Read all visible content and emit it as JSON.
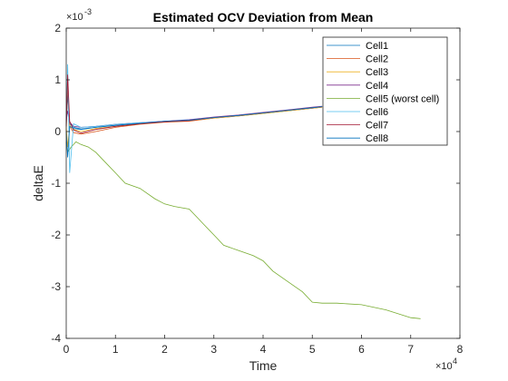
{
  "chart_data": {
    "type": "line",
    "title": "Estimated OCV Deviation from Mean",
    "xlabel": "Time",
    "ylabel": "deltaE",
    "x_multiplier_label": "×10",
    "x_multiplier_exp": "4",
    "y_multiplier_label": "×10",
    "y_multiplier_exp": "-3",
    "xlim": [
      0,
      80000
    ],
    "ylim": [
      -0.004,
      0.002
    ],
    "x_ticks": [
      0,
      10000,
      20000,
      30000,
      40000,
      50000,
      60000,
      70000,
      80000
    ],
    "x_tick_labels": [
      "0",
      "1",
      "2",
      "3",
      "4",
      "5",
      "6",
      "7",
      "8"
    ],
    "y_ticks": [
      -0.004,
      -0.003,
      -0.002,
      -0.001,
      0,
      0.001,
      0.002
    ],
    "y_tick_labels": [
      "-4",
      "-3",
      "-2",
      "-1",
      "0",
      "1",
      "2"
    ],
    "grid": false,
    "legend_position": "top-right",
    "series": [
      {
        "name": "Cell1",
        "color": "#0072BD",
        "x": [
          0,
          300,
          700,
          1500,
          3000,
          6000,
          10000,
          15000,
          20000,
          25000,
          30000,
          35000,
          40000,
          45000,
          50000,
          52000
        ],
        "y": [
          0.0001,
          0.0007,
          0.00015,
          8e-05,
          5e-05,
          8e-05,
          0.00012,
          0.00016,
          0.0002,
          0.00022,
          0.00027,
          0.00031,
          0.00036,
          0.00041,
          0.00046,
          0.00048
        ]
      },
      {
        "name": "Cell2",
        "color": "#D95319",
        "x": [
          0,
          300,
          700,
          1500,
          3000,
          6000,
          10000,
          15000,
          20000,
          25000,
          30000,
          35000,
          40000,
          45000,
          50000,
          52000
        ],
        "y": [
          0.0,
          0.0009,
          0.0001,
          -2e-05,
          -5e-05,
          0.0,
          8e-05,
          0.00014,
          0.00018,
          0.0002,
          0.00026,
          0.0003,
          0.00035,
          0.0004,
          0.00045,
          0.00047
        ]
      },
      {
        "name": "Cell3",
        "color": "#EDB120",
        "x": [
          0,
          300,
          700,
          1500,
          3000,
          6000,
          10000,
          15000,
          20000,
          25000,
          30000,
          35000,
          40000,
          45000,
          50000,
          52000
        ],
        "y": [
          0.0001,
          -0.0003,
          0.00012,
          4e-05,
          0.0,
          6e-05,
          0.0001,
          0.00015,
          0.00019,
          0.00021,
          0.00026,
          0.0003,
          0.00035,
          0.0004,
          0.00045,
          0.00047
        ]
      },
      {
        "name": "Cell4",
        "color": "#7E2F8E",
        "x": [
          0,
          300,
          700,
          1500,
          3000,
          6000,
          10000,
          15000,
          20000,
          25000,
          30000,
          35000,
          40000,
          45000,
          50000,
          52000
        ],
        "y": [
          0.0002,
          0.0004,
          0.00018,
          0.0001,
          8e-05,
          0.0001,
          0.00014,
          0.00017,
          0.0002,
          0.00023,
          0.00028,
          0.00032,
          0.00037,
          0.00042,
          0.00047,
          0.00049
        ]
      },
      {
        "name": "Cell5 (worst cell)",
        "color": "#77AC30",
        "x": [
          0,
          300,
          1000,
          2000,
          3000,
          4500,
          6000,
          8000,
          10000,
          12000,
          15000,
          18000,
          20000,
          22000,
          25000,
          28000,
          30000,
          32000,
          35000,
          38000,
          40000,
          42000,
          45000,
          48000,
          50000,
          52000,
          55000,
          60000,
          65000,
          70000,
          72000
        ],
        "y": [
          -0.0002,
          -0.0004,
          -0.0003,
          -0.0002,
          -0.00025,
          -0.0003,
          -0.0004,
          -0.0006,
          -0.0008,
          -0.001,
          -0.0011,
          -0.0013,
          -0.0014,
          -0.00145,
          -0.0015,
          -0.0018,
          -0.002,
          -0.0022,
          -0.0023,
          -0.0024,
          -0.0025,
          -0.0027,
          -0.0029,
          -0.0031,
          -0.0033,
          -0.00332,
          -0.00332,
          -0.00335,
          -0.00345,
          -0.0036,
          -0.00362
        ]
      },
      {
        "name": "Cell6",
        "color": "#4DBEEE",
        "x": [
          0,
          300,
          700,
          1500,
          3000,
          6000,
          10000,
          15000,
          20000,
          25000,
          30000,
          35000,
          40000,
          45000,
          50000,
          52000
        ],
        "y": [
          0.0002,
          0.0013,
          -0.0008,
          0.00015,
          8e-05,
          0.0001,
          0.00014,
          0.00017,
          0.00019,
          0.00022,
          0.00027,
          0.00031,
          0.00036,
          0.00041,
          0.00046,
          0.00048
        ]
      },
      {
        "name": "Cell7",
        "color": "#A2142F",
        "x": [
          0,
          300,
          700,
          1500,
          3000,
          6000,
          10000,
          15000,
          20000,
          25000,
          30000,
          35000,
          40000,
          45000,
          50000,
          52000
        ],
        "y": [
          0.0001,
          0.0011,
          0.0002,
          3e-05,
          -3e-05,
          4e-05,
          0.0001,
          0.00015,
          0.00019,
          0.00021,
          0.00027,
          0.00031,
          0.00036,
          0.00041,
          0.00046,
          0.00048
        ]
      },
      {
        "name": "Cell8",
        "color": "#0072BD",
        "x": [
          0,
          300,
          700,
          1500,
          3000,
          6000,
          10000,
          15000,
          20000,
          25000,
          30000,
          35000,
          40000,
          45000,
          50000,
          52000
        ],
        "y": [
          0.0,
          -0.0005,
          0.0001,
          6e-05,
          4e-05,
          8e-05,
          0.00012,
          0.00016,
          0.0002,
          0.00022,
          0.00027,
          0.00031,
          0.00036,
          0.00041,
          0.00046,
          0.00048
        ]
      }
    ]
  }
}
